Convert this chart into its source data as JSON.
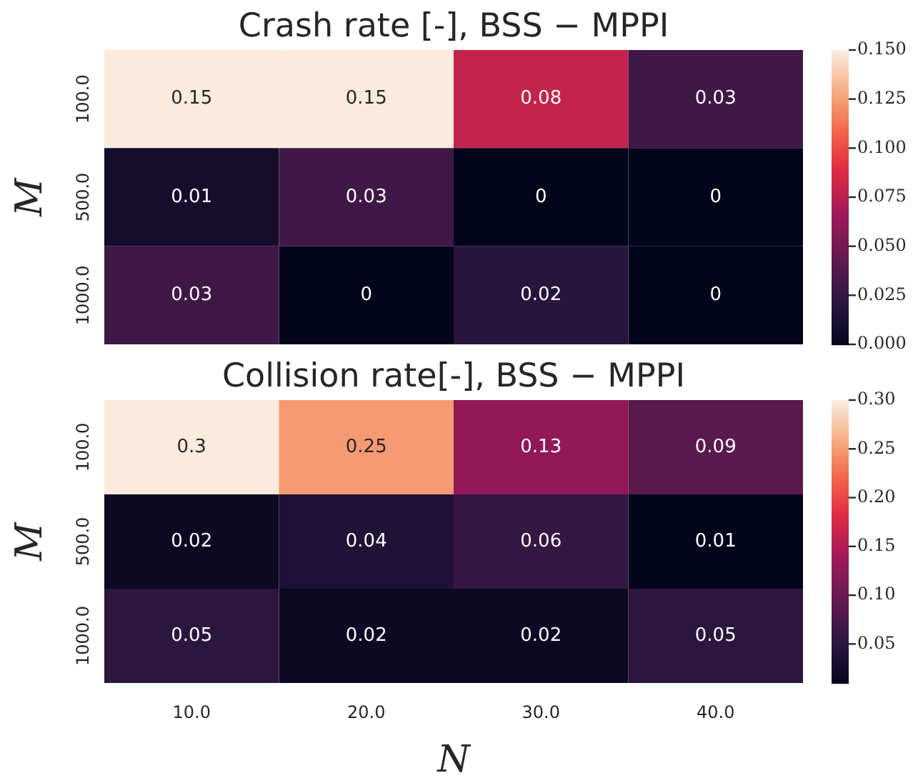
{
  "chart_data": [
    {
      "type": "heatmap",
      "title": "Crash rate [-], BSS − MPPI",
      "ylabel": "M",
      "categories": [
        "10.0",
        "20.0",
        "30.0",
        "40.0"
      ],
      "y_categories": [
        "100.0",
        "500.0",
        "1000.0"
      ],
      "cells": [
        [
          0.15,
          0.15,
          0.08,
          0.03
        ],
        [
          0.01,
          0.03,
          0,
          0
        ],
        [
          0.03,
          0,
          0.02,
          0
        ]
      ],
      "data_labels": true,
      "clim": [
        0,
        0.15
      ],
      "cticks": [
        {
          "value": 0,
          "label": "0.000"
        },
        {
          "value": 0.025,
          "label": "0.025"
        },
        {
          "value": 0.05,
          "label": "0.050"
        },
        {
          "value": 0.075,
          "label": "0.075"
        },
        {
          "value": 0.1,
          "label": "0.100"
        },
        {
          "value": 0.125,
          "label": "0.125"
        },
        {
          "value": 0.15,
          "label": "0.150"
        }
      ],
      "tick_labels": "y"
    },
    {
      "type": "heatmap",
      "title": "Collision rate[-], BSS − MPPI",
      "xlabel": "N",
      "ylabel": "M",
      "categories": [
        "10.0",
        "20.0",
        "30.0",
        "40.0"
      ],
      "y_categories": [
        "100.0",
        "500.0",
        "1000.0"
      ],
      "cells": [
        [
          0.3,
          0.25,
          0.13,
          0.09
        ],
        [
          0.02,
          0.04,
          0.06,
          0.01
        ],
        [
          0.05,
          0.02,
          0.02,
          0.05
        ]
      ],
      "data_labels": true,
      "clim": [
        0.01,
        0.3
      ],
      "cticks": [
        {
          "value": 0.05,
          "label": "0.05"
        },
        {
          "value": 0.1,
          "label": "0.10"
        },
        {
          "value": 0.15,
          "label": "0.15"
        },
        {
          "value": 0.2,
          "label": "0.20"
        },
        {
          "value": 0.25,
          "label": "0.25"
        },
        {
          "value": 0.3,
          "label": "0.30"
        }
      ]
    }
  ]
}
